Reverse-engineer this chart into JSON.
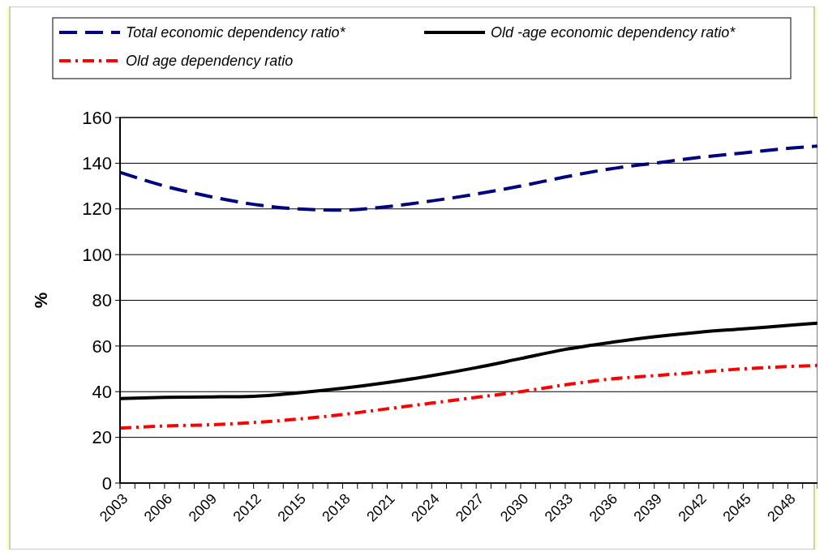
{
  "chart_data": {
    "type": "line",
    "ylabel": "%",
    "xlim": [
      2003,
      2050
    ],
    "ylim": [
      0,
      160
    ],
    "yticks": [
      0,
      20,
      40,
      60,
      80,
      100,
      120,
      140,
      160
    ],
    "xticks": [
      2003,
      {
        "value": 2004,
        "label": null
      },
      {
        "value": 2005,
        "label": null
      },
      2006,
      {
        "value": 2007,
        "label": null
      },
      {
        "value": 2008,
        "label": null
      },
      2009,
      {
        "value": 2010,
        "label": null
      },
      {
        "value": 2011,
        "label": null
      },
      2012,
      {
        "value": 2013,
        "label": null
      },
      {
        "value": 2014,
        "label": null
      },
      2015,
      {
        "value": 2016,
        "label": null
      },
      {
        "value": 2017,
        "label": null
      },
      2018,
      {
        "value": 2019,
        "label": null
      },
      {
        "value": 2020,
        "label": null
      },
      2021,
      {
        "value": 2022,
        "label": null
      },
      {
        "value": 2023,
        "label": null
      },
      2024,
      {
        "value": 2025,
        "label": null
      },
      {
        "value": 2026,
        "label": null
      },
      2027,
      {
        "value": 2028,
        "label": null
      },
      {
        "value": 2029,
        "label": null
      },
      2030,
      {
        "value": 2031,
        "label": null
      },
      {
        "value": 2032,
        "label": null
      },
      2033,
      {
        "value": 2034,
        "label": null
      },
      {
        "value": 2035,
        "label": null
      },
      2036,
      {
        "value": 2037,
        "label": null
      },
      {
        "value": 2038,
        "label": null
      },
      2039,
      {
        "value": 2040,
        "label": null
      },
      {
        "value": 2041,
        "label": null
      },
      2042,
      {
        "value": 2043,
        "label": null
      },
      {
        "value": 2044,
        "label": null
      },
      2045,
      {
        "value": 2046,
        "label": null
      },
      {
        "value": 2047,
        "label": null
      },
      2048,
      {
        "value": 2049,
        "label": null
      },
      {
        "value": 2050,
        "label": null
      }
    ],
    "x": [
      2003,
      2006,
      2009,
      2012,
      2015,
      2018,
      2021,
      2024,
      2027,
      2030,
      2033,
      2036,
      2039,
      2042,
      2045,
      2048,
      2050
    ],
    "grid": "y",
    "legend": "top",
    "marker": "none",
    "series": [
      {
        "name": "Total economic dependency ratio*",
        "color": "#000080",
        "line_style": "dashed",
        "values": [
          136,
          130,
          125.5,
          122,
          120,
          119.5,
          121,
          123.5,
          126.5,
          130,
          134,
          137.5,
          140,
          142.5,
          144.5,
          146.5,
          147.5
        ]
      },
      {
        "name": "Old -age economic dependency ratio*",
        "color": "#000000",
        "line_style": "solid",
        "values": [
          37,
          37.5,
          37.7,
          38,
          39.5,
          41.5,
          44,
          47,
          50.5,
          54.5,
          58.5,
          61.5,
          64,
          66,
          67.5,
          69,
          70
        ]
      },
      {
        "name": "Old age dependency ratio",
        "color": "#ff0000",
        "line_style": "dashdot",
        "values": [
          24,
          25,
          25.5,
          26.5,
          28,
          30,
          32.5,
          35,
          37.5,
          40,
          43,
          45.5,
          47,
          48.5,
          50,
          51,
          51.5
        ]
      }
    ]
  }
}
